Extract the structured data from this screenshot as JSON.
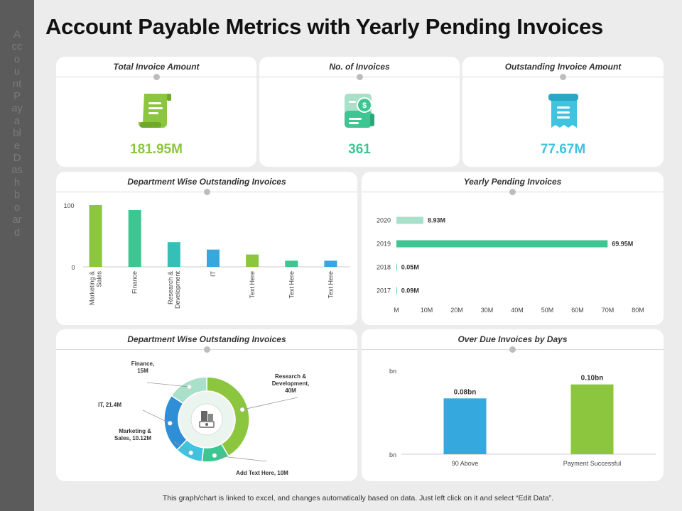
{
  "side_text": "Account Payable Dashboard",
  "page_title": "Account Payable Metrics with Yearly Pending Invoices",
  "kpis": [
    {
      "title": "Total Invoice Amount",
      "value": "181.95M",
      "color": "#8cc63f",
      "icon": "scroll-document-icon"
    },
    {
      "title": "No. of Invoices",
      "value": "361",
      "color": "#3dc592",
      "icon": "invoice-dollar-icon"
    },
    {
      "title": "Outstanding Invoice Amount",
      "value": "77.67M",
      "color": "#3fc3de",
      "icon": "receipt-icon"
    }
  ],
  "footer": "This graph/chart is linked to excel, and changes automatically based on data. Just left click on it and select “Edit Data”.",
  "chart_data": [
    {
      "type": "bar",
      "title": "Department Wise Outstanding Invoices",
      "categories": [
        "Marketing & Sales",
        "Finance",
        "Research & Development",
        "IT",
        "Text Here",
        "Text Here",
        "Text Here"
      ],
      "category_lines": [
        [
          "Marketing &",
          "Sales"
        ],
        [
          "Finance"
        ],
        [
          "Research &",
          "Development"
        ],
        [
          "IT"
        ],
        [
          "Text Here"
        ],
        [
          "Text Here"
        ],
        [
          "Text Here"
        ]
      ],
      "values": [
        100,
        92,
        40,
        28,
        20,
        10,
        10
      ],
      "colors": [
        "#8cc63f",
        "#3dc592",
        "#35bfb6",
        "#35a8dd",
        "#8cc63f",
        "#3dc592",
        "#35a8dd"
      ],
      "yticks": [
        "100",
        "0"
      ],
      "ylim": [
        0,
        100
      ]
    },
    {
      "type": "bar",
      "orientation": "horizontal",
      "title": "Yearly Pending Invoices",
      "categories": [
        "2020",
        "2019",
        "2018",
        "2017"
      ],
      "values": [
        8.93,
        69.95,
        0.05,
        0.09
      ],
      "labels": [
        "8.93M",
        "69.95M",
        "0.05M",
        "0.09M"
      ],
      "colors": [
        "#a9e0c9",
        "#3dc592",
        "#3dc592",
        "#3dc592"
      ],
      "xticks": [
        "M",
        "10M",
        "20M",
        "30M",
        "40M",
        "50M",
        "60M",
        "70M",
        "80M"
      ],
      "xlim": [
        0,
        80
      ]
    },
    {
      "type": "pie",
      "title": "Department Wise Outstanding Invoices",
      "slices": [
        {
          "label": [
            "Research &",
            "Development,",
            "40M"
          ],
          "value": 40,
          "color": "#8cc63f"
        },
        {
          "label": [
            "Add Text Here, 10M"
          ],
          "value": 10,
          "color": "#3dc592"
        },
        {
          "label": [
            "Marketing &",
            "Sales, 10.12M"
          ],
          "value": 10.12,
          "color": "#3fc3de"
        },
        {
          "label": [
            "IT, 21.4M"
          ],
          "value": 21.4,
          "color": "#2f8fd6"
        },
        {
          "label": [
            "Finance,",
            "15M"
          ],
          "value": 15,
          "color": "#a9e0c9"
        }
      ]
    },
    {
      "type": "bar",
      "title": "Over Due Invoices by Days",
      "categories": [
        "90 Above",
        "Payment Successful"
      ],
      "values": [
        0.08,
        0.1
      ],
      "labels": [
        "0.08bn",
        "0.10bn"
      ],
      "colors": [
        "#35a8dd",
        "#8cc63f"
      ],
      "yticks": [
        "bn",
        "bn"
      ],
      "ylim": [
        0,
        0.12
      ]
    }
  ]
}
